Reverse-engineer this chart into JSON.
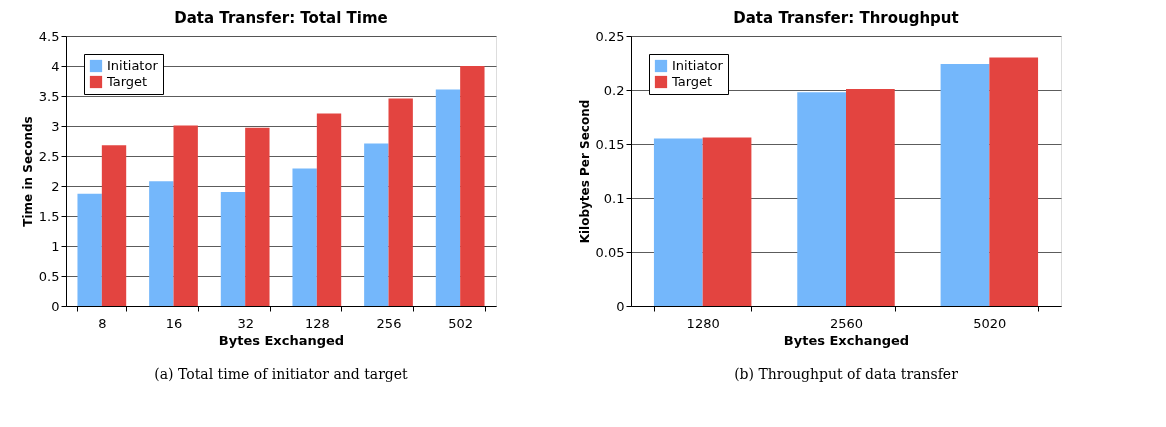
{
  "chart_data": [
    {
      "type": "bar",
      "title": "Data Transfer: Total Time",
      "xlabel": "Bytes Exchanged",
      "ylabel": "Time in Seconds",
      "categories": [
        "8",
        "16",
        "32",
        "128",
        "256",
        "502"
      ],
      "series": [
        {
          "name": "Initiator",
          "color": "#74b7fb",
          "values": [
            1.87,
            2.08,
            1.9,
            2.29,
            2.71,
            3.61
          ]
        },
        {
          "name": "Target",
          "color": "#e34440",
          "values": [
            2.68,
            3.01,
            2.97,
            3.21,
            3.46,
            4.0
          ]
        }
      ],
      "ylim": [
        0,
        4.5
      ],
      "yticks": [
        0,
        0.5,
        1,
        1.5,
        2,
        2.5,
        3,
        3.5,
        4,
        4.5
      ],
      "grid": "y",
      "legend": "top left",
      "annotations": [
        "(a) Total time of initiator and target"
      ]
    },
    {
      "type": "bar",
      "title": "Data Transfer: Throughput",
      "xlabel": "Bytes Exchanged",
      "ylabel": "Kilobytes Per Second",
      "categories": [
        "1280",
        "2560",
        "5020"
      ],
      "series": [
        {
          "name": "Initiator",
          "color": "#74b7fb",
          "values": [
            0.155,
            0.198,
            0.224
          ]
        },
        {
          "name": "Target",
          "color": "#e34440",
          "values": [
            0.156,
            0.201,
            0.23
          ]
        }
      ],
      "ylim": [
        0,
        0.25
      ],
      "yticks": [
        0,
        0.05,
        0.1,
        0.15,
        0.2,
        0.25
      ],
      "grid": "y",
      "legend": "top left",
      "annotations": [
        "(b) Throughput of data transfer"
      ]
    }
  ]
}
